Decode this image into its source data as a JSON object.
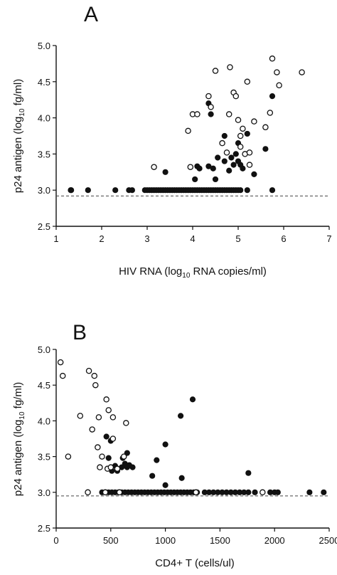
{
  "chart_data": [
    {
      "panel_letter": "A",
      "type": "scatter",
      "xlabel_parts": [
        "HIV RNA (log",
        "10",
        " RNA copies/ml)"
      ],
      "ylabel_parts": [
        "p24 antigen (log",
        "10",
        " fg/ml)"
      ],
      "xlim": [
        1,
        7
      ],
      "ylim": [
        2.5,
        5.0
      ],
      "x_ticks": [
        "1",
        "2",
        "3",
        "4",
        "5",
        "6",
        "7"
      ],
      "y_ticks": [
        "2.5",
        "3.0",
        "3.5",
        "4.0",
        "4.5",
        "5.0"
      ],
      "reference_line_y": 2.92,
      "grid": false,
      "series": [
        {
          "marker": "filled-circle",
          "points": [
            [
              1.32,
              3.0
            ],
            [
              1.33,
              3.0
            ],
            [
              1.7,
              3.0
            ],
            [
              2.3,
              3.0
            ],
            [
              2.6,
              3.0
            ],
            [
              2.67,
              3.0
            ],
            [
              2.95,
              3.0
            ],
            [
              3.0,
              3.0
            ],
            [
              3.05,
              3.0
            ],
            [
              3.1,
              3.0
            ],
            [
              3.15,
              3.0
            ],
            [
              3.2,
              3.0
            ],
            [
              3.25,
              3.0
            ],
            [
              3.3,
              3.0
            ],
            [
              3.35,
              3.0
            ],
            [
              3.4,
              3.0
            ],
            [
              3.45,
              3.0
            ],
            [
              3.5,
              3.0
            ],
            [
              3.55,
              3.0
            ],
            [
              3.6,
              3.0
            ],
            [
              3.65,
              3.0
            ],
            [
              3.7,
              3.0
            ],
            [
              3.75,
              3.0
            ],
            [
              3.8,
              3.0
            ],
            [
              3.85,
              3.0
            ],
            [
              3.9,
              3.0
            ],
            [
              3.95,
              3.0
            ],
            [
              4.0,
              3.0
            ],
            [
              4.05,
              3.0
            ],
            [
              4.1,
              3.0
            ],
            [
              4.15,
              3.0
            ],
            [
              4.2,
              3.0
            ],
            [
              4.25,
              3.0
            ],
            [
              4.3,
              3.0
            ],
            [
              4.35,
              3.0
            ],
            [
              4.4,
              3.0
            ],
            [
              4.45,
              3.0
            ],
            [
              4.5,
              3.0
            ],
            [
              4.55,
              3.0
            ],
            [
              4.6,
              3.0
            ],
            [
              4.65,
              3.0
            ],
            [
              4.7,
              3.0
            ],
            [
              4.75,
              3.0
            ],
            [
              4.8,
              3.0
            ],
            [
              4.85,
              3.0
            ],
            [
              4.9,
              3.0
            ],
            [
              4.95,
              3.0
            ],
            [
              5.0,
              3.0
            ],
            [
              5.05,
              3.0
            ],
            [
              5.2,
              3.0
            ],
            [
              5.75,
              3.0
            ],
            [
              3.4,
              3.25
            ],
            [
              4.05,
              3.15
            ],
            [
              4.1,
              3.33
            ],
            [
              4.15,
              3.3
            ],
            [
              4.35,
              4.2
            ],
            [
              4.4,
              4.05
            ],
            [
              4.35,
              3.33
            ],
            [
              4.45,
              3.3
            ],
            [
              4.5,
              3.15
            ],
            [
              4.55,
              3.45
            ],
            [
              4.7,
              3.4
            ],
            [
              4.8,
              3.27
            ],
            [
              4.85,
              3.45
            ],
            [
              4.9,
              3.35
            ],
            [
              4.95,
              3.5
            ],
            [
              5.0,
              3.65
            ],
            [
              5.05,
              3.35
            ],
            [
              5.1,
              3.3
            ],
            [
              5.2,
              3.78
            ],
            [
              5.35,
              3.22
            ],
            [
              5.6,
              3.57
            ],
            [
              5.75,
              4.3
            ],
            [
              4.7,
              3.75
            ],
            [
              5.0,
              3.4
            ]
          ]
        },
        {
          "marker": "open-circle",
          "points": [
            [
              3.15,
              3.32
            ],
            [
              3.9,
              3.82
            ],
            [
              3.95,
              3.32
            ],
            [
              4.0,
              4.05
            ],
            [
              4.1,
              4.05
            ],
            [
              4.35,
              4.3
            ],
            [
              4.4,
              4.15
            ],
            [
              4.5,
              4.65
            ],
            [
              4.65,
              3.65
            ],
            [
              4.75,
              3.52
            ],
            [
              4.8,
              4.05
            ],
            [
              4.82,
              4.7
            ],
            [
              4.9,
              4.35
            ],
            [
              4.95,
              4.3
            ],
            [
              5.0,
              3.97
            ],
            [
              5.05,
              3.75
            ],
            [
              5.05,
              3.6
            ],
            [
              5.1,
              3.85
            ],
            [
              5.15,
              3.5
            ],
            [
              5.2,
              4.5
            ],
            [
              5.25,
              3.52
            ],
            [
              5.25,
              3.35
            ],
            [
              5.35,
              3.95
            ],
            [
              5.6,
              3.87
            ],
            [
              5.7,
              4.07
            ],
            [
              5.75,
              4.82
            ],
            [
              5.85,
              4.63
            ],
            [
              5.9,
              4.45
            ],
            [
              6.4,
              4.63
            ]
          ]
        }
      ]
    },
    {
      "panel_letter": "B",
      "type": "scatter",
      "xlabel_parts": [
        "CD4+ T (cells/ul)",
        "",
        ""
      ],
      "ylabel_parts": [
        "p24 antigen (log",
        "10",
        " fg/ml)"
      ],
      "xlim": [
        0,
        2500
      ],
      "ylim": [
        2.5,
        5.0
      ],
      "x_ticks": [
        "0",
        "500",
        "1000",
        "1500",
        "2000",
        "2500"
      ],
      "y_ticks": [
        "2.5",
        "3.0",
        "3.5",
        "4.0",
        "4.5",
        "5.0"
      ],
      "reference_line_y": 2.95,
      "grid": false,
      "series": [
        {
          "marker": "filled-circle",
          "points": [
            [
              420,
              3.0
            ],
            [
              450,
              3.0
            ],
            [
              480,
              3.0
            ],
            [
              510,
              3.0
            ],
            [
              540,
              3.0
            ],
            [
              570,
              3.0
            ],
            [
              600,
              3.0
            ],
            [
              630,
              3.0
            ],
            [
              660,
              3.0
            ],
            [
              690,
              3.0
            ],
            [
              720,
              3.0
            ],
            [
              750,
              3.0
            ],
            [
              780,
              3.0
            ],
            [
              810,
              3.0
            ],
            [
              840,
              3.0
            ],
            [
              870,
              3.0
            ],
            [
              900,
              3.0
            ],
            [
              930,
              3.0
            ],
            [
              960,
              3.0
            ],
            [
              990,
              3.0
            ],
            [
              1020,
              3.0
            ],
            [
              1050,
              3.0
            ],
            [
              1080,
              3.0
            ],
            [
              1110,
              3.0
            ],
            [
              1140,
              3.0
            ],
            [
              1170,
              3.0
            ],
            [
              1200,
              3.0
            ],
            [
              1230,
              3.0
            ],
            [
              1260,
              3.0
            ],
            [
              1290,
              3.0
            ],
            [
              1360,
              3.0
            ],
            [
              1400,
              3.0
            ],
            [
              1440,
              3.0
            ],
            [
              1480,
              3.0
            ],
            [
              1520,
              3.0
            ],
            [
              1560,
              3.0
            ],
            [
              1600,
              3.0
            ],
            [
              1640,
              3.0
            ],
            [
              1680,
              3.0
            ],
            [
              1720,
              3.0
            ],
            [
              1760,
              3.0
            ],
            [
              1820,
              3.0
            ],
            [
              1960,
              3.0
            ],
            [
              2000,
              3.0
            ],
            [
              2030,
              3.0
            ],
            [
              2320,
              3.0
            ],
            [
              2450,
              3.0
            ],
            [
              460,
              3.78
            ],
            [
              480,
              3.48
            ],
            [
              500,
              3.72
            ],
            [
              510,
              3.3
            ],
            [
              540,
              3.37
            ],
            [
              560,
              3.3
            ],
            [
              600,
              3.35
            ],
            [
              610,
              3.48
            ],
            [
              630,
              3.4
            ],
            [
              650,
              3.55
            ],
            [
              650,
              3.35
            ],
            [
              670,
              3.38
            ],
            [
              700,
              3.35
            ],
            [
              880,
              3.23
            ],
            [
              920,
              3.45
            ],
            [
              1000,
              3.67
            ],
            [
              1000,
              3.1
            ],
            [
              1140,
              4.07
            ],
            [
              1150,
              3.2
            ],
            [
              1250,
              4.3
            ],
            [
              1760,
              3.27
            ]
          ]
        },
        {
          "marker": "open-circle",
          "points": [
            [
              40,
              4.82
            ],
            [
              60,
              4.63
            ],
            [
              110,
              3.5
            ],
            [
              220,
              4.07
            ],
            [
              290,
              3.0
            ],
            [
              300,
              4.7
            ],
            [
              330,
              3.88
            ],
            [
              350,
              4.63
            ],
            [
              360,
              4.5
            ],
            [
              380,
              3.63
            ],
            [
              390,
              4.05
            ],
            [
              400,
              3.35
            ],
            [
              420,
              3.5
            ],
            [
              450,
              3.0
            ],
            [
              460,
              4.3
            ],
            [
              470,
              3.33
            ],
            [
              480,
              4.15
            ],
            [
              500,
              3.35
            ],
            [
              520,
              3.75
            ],
            [
              520,
              4.05
            ],
            [
              560,
              3.33
            ],
            [
              580,
              3.0
            ],
            [
              620,
              3.5
            ],
            [
              640,
              3.97
            ],
            [
              1280,
              3.0
            ],
            [
              1890,
              3.0
            ]
          ]
        }
      ]
    }
  ]
}
